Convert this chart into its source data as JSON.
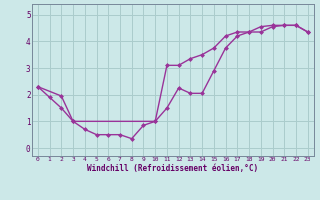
{
  "line1_x": [
    0,
    1,
    2,
    3,
    4,
    5,
    6,
    7,
    8,
    9,
    10,
    11,
    12,
    13,
    14,
    15,
    16,
    17,
    18,
    19,
    20,
    21,
    22,
    23
  ],
  "line1_y": [
    2.3,
    1.9,
    1.5,
    1.0,
    0.7,
    0.5,
    0.5,
    0.5,
    0.35,
    0.85,
    1.0,
    1.5,
    2.25,
    2.05,
    2.05,
    2.9,
    3.75,
    4.2,
    4.35,
    4.35,
    4.55,
    4.6,
    4.6,
    4.35
  ],
  "line2_x": [
    0,
    2,
    3,
    10,
    11,
    12,
    13,
    14,
    15,
    16,
    17,
    18,
    19,
    20,
    21,
    22,
    23
  ],
  "line2_y": [
    2.3,
    1.95,
    1.0,
    1.0,
    3.1,
    3.1,
    3.35,
    3.5,
    3.75,
    4.2,
    4.35,
    4.35,
    4.55,
    4.6,
    4.6,
    4.6,
    4.35
  ],
  "color": "#993399",
  "background": "#cce8e8",
  "grid_color": "#aacccc",
  "xlabel": "Windchill (Refroidissement éolien,°C)",
  "ylim": [
    -0.3,
    5.4
  ],
  "xlim": [
    -0.5,
    23.5
  ],
  "xticks": [
    0,
    1,
    2,
    3,
    4,
    5,
    6,
    7,
    8,
    9,
    10,
    11,
    12,
    13,
    14,
    15,
    16,
    17,
    18,
    19,
    20,
    21,
    22,
    23
  ],
  "yticks": [
    0,
    1,
    2,
    3,
    4,
    5
  ],
  "marker": "D",
  "markersize": 2.5,
  "linewidth": 1.0
}
